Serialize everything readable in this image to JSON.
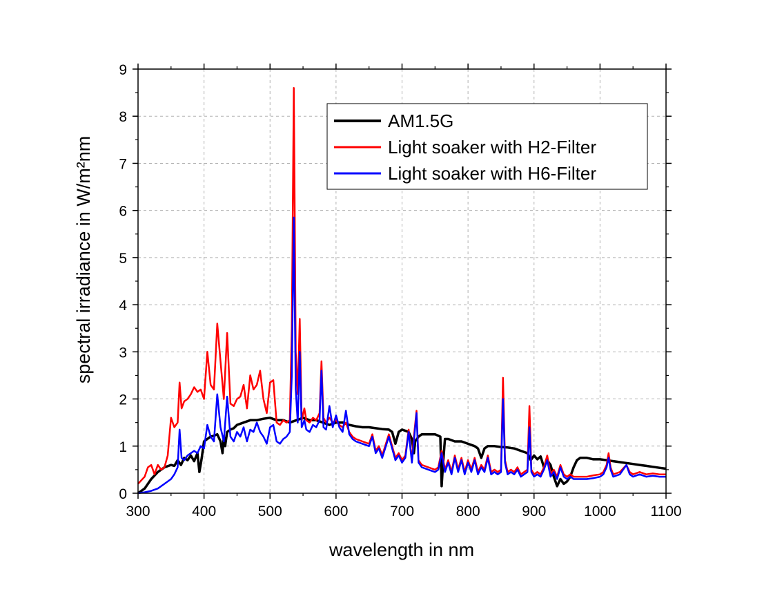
{
  "chart_data": {
    "type": "line",
    "title": "",
    "xlabel": "wavelength in nm",
    "ylabel": "spectral irradiance in W/m²nm",
    "xlim": [
      300,
      1100
    ],
    "ylim": [
      0,
      9
    ],
    "xticks": [
      "300",
      "400",
      "500",
      "600",
      "700",
      "800",
      "900",
      "1000",
      "1100"
    ],
    "yticks": [
      "0",
      "1",
      "2",
      "3",
      "4",
      "5",
      "6",
      "7",
      "8",
      "9"
    ],
    "grid": true,
    "legend_position": "top-right",
    "series": [
      {
        "name": "AM1.5G",
        "color": "#000000",
        "x": [
          300,
          310,
          320,
          330,
          340,
          350,
          355,
          360,
          365,
          370,
          375,
          380,
          385,
          390,
          393,
          396,
          400,
          405,
          410,
          415,
          420,
          425,
          428,
          430,
          432,
          435,
          440,
          445,
          450,
          460,
          470,
          480,
          490,
          500,
          510,
          520,
          530,
          540,
          550,
          560,
          570,
          580,
          590,
          600,
          610,
          620,
          630,
          640,
          650,
          660,
          670,
          680,
          685,
          690,
          695,
          700,
          710,
          715,
          718,
          720,
          725,
          730,
          740,
          750,
          758,
          760,
          762,
          765,
          770,
          780,
          790,
          800,
          810,
          815,
          820,
          825,
          830,
          840,
          850,
          860,
          870,
          880,
          890,
          895,
          900,
          905,
          910,
          915,
          920,
          925,
          930,
          935,
          940,
          945,
          950,
          955,
          960,
          965,
          970,
          980,
          990,
          1000,
          1010,
          1020,
          1030,
          1040,
          1050,
          1060,
          1070,
          1080,
          1090,
          1100
        ],
        "values": [
          0.0,
          0.1,
          0.3,
          0.45,
          0.55,
          0.6,
          0.58,
          0.7,
          0.6,
          0.75,
          0.7,
          0.8,
          0.68,
          0.85,
          0.45,
          0.7,
          1.1,
          1.15,
          1.2,
          1.22,
          1.25,
          1.1,
          0.85,
          1.2,
          1.0,
          1.3,
          1.35,
          1.38,
          1.45,
          1.5,
          1.55,
          1.55,
          1.58,
          1.6,
          1.55,
          1.55,
          1.5,
          1.55,
          1.6,
          1.55,
          1.55,
          1.5,
          1.45,
          1.5,
          1.5,
          1.45,
          1.42,
          1.4,
          1.4,
          1.38,
          1.36,
          1.35,
          1.3,
          1.05,
          1.3,
          1.35,
          1.3,
          1.15,
          0.85,
          1.1,
          1.2,
          1.25,
          1.25,
          1.25,
          1.2,
          0.15,
          0.6,
          1.15,
          1.15,
          1.1,
          1.1,
          1.05,
          1.0,
          0.95,
          0.75,
          0.95,
          1.0,
          1.0,
          0.98,
          0.97,
          0.95,
          0.9,
          0.85,
          0.7,
          0.8,
          0.72,
          0.78,
          0.55,
          0.7,
          0.6,
          0.35,
          0.15,
          0.3,
          0.2,
          0.25,
          0.35,
          0.55,
          0.7,
          0.75,
          0.75,
          0.72,
          0.72,
          0.7,
          0.68,
          0.66,
          0.64,
          0.62,
          0.6,
          0.58,
          0.56,
          0.54,
          0.52
        ]
      },
      {
        "name": "Light soaker with H2-Filter",
        "color": "#ff0000",
        "x": [
          300,
          310,
          315,
          320,
          325,
          330,
          335,
          340,
          345,
          350,
          355,
          360,
          363,
          366,
          370,
          375,
          380,
          385,
          390,
          395,
          400,
          405,
          410,
          415,
          420,
          425,
          430,
          435,
          440,
          445,
          450,
          455,
          460,
          465,
          470,
          475,
          480,
          485,
          490,
          495,
          500,
          505,
          510,
          515,
          520,
          525,
          530,
          533,
          536,
          539,
          542,
          545,
          548,
          552,
          555,
          560,
          565,
          570,
          575,
          578,
          581,
          585,
          590,
          595,
          600,
          605,
          610,
          615,
          620,
          625,
          630,
          640,
          650,
          655,
          660,
          665,
          670,
          680,
          690,
          695,
          700,
          705,
          710,
          715,
          718,
          722,
          725,
          730,
          740,
          750,
          755,
          760,
          765,
          770,
          775,
          780,
          785,
          790,
          795,
          800,
          805,
          810,
          815,
          820,
          825,
          830,
          835,
          840,
          845,
          850,
          853,
          856,
          860,
          865,
          870,
          875,
          880,
          885,
          890,
          893,
          896,
          900,
          905,
          910,
          915,
          920,
          925,
          930,
          935,
          940,
          945,
          950,
          955,
          960,
          970,
          980,
          990,
          1000,
          1005,
          1010,
          1013,
          1016,
          1020,
          1030,
          1040,
          1045,
          1050,
          1060,
          1070,
          1080,
          1090,
          1100
        ],
        "values": [
          0.2,
          0.35,
          0.55,
          0.6,
          0.4,
          0.6,
          0.5,
          0.55,
          0.8,
          1.6,
          1.4,
          1.5,
          2.35,
          1.8,
          1.95,
          2.0,
          2.1,
          2.25,
          2.15,
          2.2,
          2.0,
          3.0,
          2.3,
          2.2,
          3.6,
          2.8,
          2.0,
          3.4,
          1.9,
          1.85,
          2.0,
          2.05,
          2.3,
          1.8,
          2.5,
          2.2,
          2.3,
          2.6,
          2.0,
          1.7,
          2.35,
          2.4,
          1.5,
          1.45,
          1.55,
          1.5,
          1.55,
          3.5,
          8.6,
          3.0,
          2.1,
          3.7,
          1.55,
          1.8,
          1.55,
          1.5,
          1.6,
          1.55,
          1.7,
          2.8,
          1.6,
          1.5,
          1.6,
          1.5,
          1.55,
          1.45,
          1.4,
          1.5,
          1.3,
          1.2,
          1.15,
          1.1,
          1.05,
          1.25,
          0.9,
          1.0,
          0.8,
          1.25,
          0.75,
          0.85,
          0.7,
          0.8,
          1.35,
          0.7,
          1.2,
          1.75,
          0.7,
          0.6,
          0.55,
          0.5,
          0.55,
          0.9,
          0.5,
          0.7,
          0.45,
          0.8,
          0.5,
          0.75,
          0.45,
          0.7,
          0.5,
          0.75,
          0.45,
          0.6,
          0.5,
          0.8,
          0.45,
          0.5,
          0.45,
          0.5,
          2.45,
          0.7,
          0.45,
          0.5,
          0.45,
          0.55,
          0.4,
          0.45,
          0.5,
          1.85,
          0.5,
          0.4,
          0.45,
          0.4,
          0.55,
          0.8,
          0.4,
          0.5,
          0.35,
          0.6,
          0.4,
          0.35,
          0.4,
          0.35,
          0.35,
          0.35,
          0.38,
          0.4,
          0.45,
          0.6,
          0.85,
          0.55,
          0.4,
          0.45,
          0.6,
          0.45,
          0.4,
          0.45,
          0.4,
          0.42,
          0.4,
          0.4
        ]
      },
      {
        "name": "Light soaker with H6-Filter",
        "color": "#0000ff",
        "x": [
          300,
          310,
          320,
          330,
          340,
          350,
          355,
          360,
          363,
          366,
          370,
          375,
          380,
          385,
          390,
          395,
          400,
          405,
          410,
          415,
          420,
          425,
          430,
          435,
          440,
          445,
          450,
          455,
          460,
          465,
          470,
          475,
          480,
          485,
          490,
          495,
          500,
          505,
          510,
          515,
          520,
          525,
          530,
          533,
          536,
          539,
          542,
          545,
          548,
          552,
          555,
          560,
          565,
          570,
          575,
          578,
          581,
          585,
          590,
          595,
          600,
          605,
          610,
          615,
          620,
          625,
          630,
          640,
          650,
          655,
          660,
          665,
          670,
          680,
          690,
          695,
          700,
          705,
          710,
          715,
          718,
          722,
          725,
          730,
          740,
          750,
          755,
          760,
          765,
          770,
          775,
          780,
          785,
          790,
          795,
          800,
          805,
          810,
          815,
          820,
          825,
          830,
          835,
          840,
          845,
          850,
          853,
          856,
          860,
          865,
          870,
          875,
          880,
          885,
          890,
          893,
          896,
          900,
          905,
          910,
          915,
          920,
          925,
          930,
          935,
          940,
          945,
          950,
          955,
          960,
          970,
          980,
          990,
          1000,
          1005,
          1010,
          1013,
          1016,
          1020,
          1030,
          1040,
          1045,
          1050,
          1060,
          1070,
          1080,
          1090,
          1100
        ],
        "values": [
          0.0,
          0.02,
          0.05,
          0.1,
          0.2,
          0.3,
          0.4,
          0.55,
          1.35,
          0.75,
          0.7,
          0.8,
          0.85,
          0.9,
          0.85,
          1.0,
          0.95,
          1.45,
          1.2,
          1.1,
          2.1,
          1.4,
          1.1,
          2.05,
          1.2,
          1.1,
          1.3,
          1.2,
          1.4,
          1.1,
          1.35,
          1.3,
          1.5,
          1.3,
          1.2,
          1.05,
          1.4,
          1.45,
          1.1,
          1.05,
          1.15,
          1.2,
          1.3,
          2.5,
          5.85,
          2.2,
          1.5,
          3.0,
          1.4,
          1.55,
          1.35,
          1.3,
          1.45,
          1.4,
          1.55,
          2.6,
          1.4,
          1.35,
          1.85,
          1.4,
          1.65,
          1.4,
          1.3,
          1.75,
          1.25,
          1.15,
          1.1,
          1.05,
          1.0,
          1.2,
          0.85,
          0.95,
          0.75,
          1.2,
          0.7,
          0.8,
          0.65,
          0.75,
          1.3,
          0.65,
          1.1,
          1.7,
          0.65,
          0.55,
          0.5,
          0.45,
          0.5,
          0.85,
          0.45,
          0.65,
          0.4,
          0.75,
          0.45,
          0.7,
          0.4,
          0.65,
          0.45,
          0.7,
          0.4,
          0.55,
          0.45,
          0.75,
          0.4,
          0.45,
          0.4,
          0.45,
          2.0,
          0.65,
          0.4,
          0.45,
          0.4,
          0.5,
          0.35,
          0.4,
          0.45,
          1.4,
          0.45,
          0.35,
          0.4,
          0.35,
          0.5,
          0.7,
          0.35,
          0.45,
          0.3,
          0.55,
          0.35,
          0.3,
          0.35,
          0.3,
          0.3,
          0.3,
          0.32,
          0.35,
          0.4,
          0.55,
          0.75,
          0.5,
          0.35,
          0.4,
          0.6,
          0.4,
          0.35,
          0.4,
          0.35,
          0.37,
          0.35,
          0.35
        ]
      }
    ]
  }
}
